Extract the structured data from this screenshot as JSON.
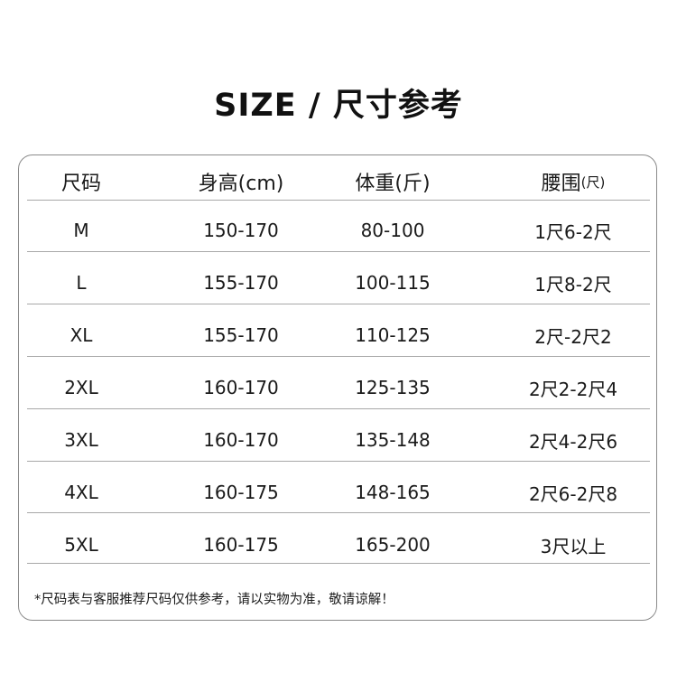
{
  "title": "SIZE / 尺寸参考",
  "table": {
    "headers": [
      "尺码",
      "身高(cm)",
      "体重(斤)",
      "腰围"
    ],
    "waist_unit": "(尺)",
    "rows": [
      [
        "M",
        "150-170",
        "80-100",
        "1尺6-2尺"
      ],
      [
        "L",
        "155-170",
        "100-115",
        "1尺8-2尺"
      ],
      [
        "XL",
        "155-170",
        "110-125",
        "2尺-2尺2"
      ],
      [
        "2XL",
        "160-170",
        "125-135",
        "2尺2-2尺4"
      ],
      [
        "3XL",
        "160-170",
        "135-148",
        "2尺4-2尺6"
      ],
      [
        "4XL",
        "160-175",
        "148-165",
        "2尺6-2尺8"
      ],
      [
        "5XL",
        "160-175",
        "165-200",
        "3尺以上"
      ]
    ]
  },
  "note": "*尺码表与客服推荐尺码仅供参考，请以实物为准，敬请谅解！"
}
